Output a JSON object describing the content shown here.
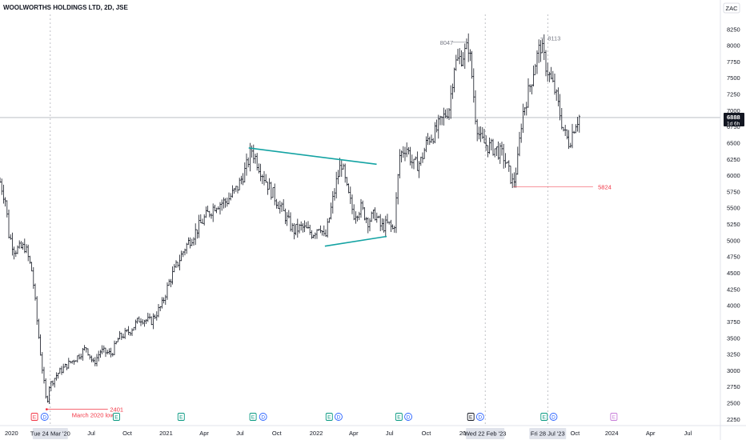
{
  "chart_data": {
    "type": "ohlc",
    "title": "WOOLWORTHS HOLDINGS LTD, 2D, JSE",
    "currency": "ZAC",
    "ylim": [
      2150,
      8450
    ],
    "y_ticks": [
      2250,
      2500,
      2750,
      3000,
      3250,
      3500,
      3750,
      4000,
      4250,
      4500,
      4750,
      5000,
      5250,
      5500,
      5750,
      6000,
      6250,
      6500,
      6750,
      7000,
      7250,
      7500,
      7750,
      8000,
      8250
    ],
    "x_labels": [
      "2020",
      "Jul",
      "Oct",
      "2021",
      "Apr",
      "Jul",
      "Oct",
      "2022",
      "Apr",
      "Jul",
      "Oct",
      "202",
      "Oct",
      "2024",
      "Apr",
      "Jul"
    ],
    "crosshair_dates": [
      "Tue 24 Mar '20",
      "Wed 22 Feb '23",
      "Fri 28 Jul '23"
    ],
    "last_price": {
      "value": 6888,
      "label": "6888",
      "countdown": "1d 6h"
    },
    "annotations": {
      "low_2020": {
        "value": 2401,
        "label": "2401",
        "note": "March 2020 low"
      },
      "high_feb23": {
        "value": 8047,
        "label": "8047"
      },
      "high_jul23": {
        "value": 8113,
        "label": "8113"
      },
      "low_support": {
        "value": 5824,
        "label": "5824"
      }
    },
    "trendlines": [
      {
        "from": [
          0.346,
          6420
        ],
        "to": [
          0.524,
          6170
        ]
      },
      {
        "from": [
          0.452,
          4910
        ],
        "to": [
          0.538,
          5060
        ]
      }
    ],
    "anchors": [
      [
        0.0,
        5900
      ],
      [
        0.008,
        5600
      ],
      [
        0.012,
        5100
      ],
      [
        0.02,
        4850
      ],
      [
        0.035,
        4900
      ],
      [
        0.045,
        4500
      ],
      [
        0.052,
        3700
      ],
      [
        0.058,
        3100
      ],
      [
        0.065,
        2450
      ],
      [
        0.068,
        2750
      ],
      [
        0.08,
        2950
      ],
      [
        0.095,
        3100
      ],
      [
        0.107,
        3200
      ],
      [
        0.12,
        3350
      ],
      [
        0.13,
        3100
      ],
      [
        0.14,
        3300
      ],
      [
        0.155,
        3250
      ],
      [
        0.165,
        3500
      ],
      [
        0.18,
        3600
      ],
      [
        0.195,
        3800
      ],
      [
        0.21,
        3750
      ],
      [
        0.225,
        4000
      ],
      [
        0.235,
        4350
      ],
      [
        0.245,
        4600
      ],
      [
        0.258,
        4900
      ],
      [
        0.27,
        5100
      ],
      [
        0.285,
        5350
      ],
      [
        0.3,
        5550
      ],
      [
        0.315,
        5600
      ],
      [
        0.33,
        5800
      ],
      [
        0.342,
        6100
      ],
      [
        0.35,
        6400
      ],
      [
        0.36,
        6150
      ],
      [
        0.375,
        5800
      ],
      [
        0.388,
        5550
      ],
      [
        0.398,
        5350
      ],
      [
        0.408,
        5150
      ],
      [
        0.42,
        5200
      ],
      [
        0.435,
        5100
      ],
      [
        0.445,
        5250
      ],
      [
        0.452,
        5000
      ],
      [
        0.46,
        5450
      ],
      [
        0.468,
        5900
      ],
      [
        0.475,
        6200
      ],
      [
        0.482,
        5800
      ],
      [
        0.492,
        5400
      ],
      [
        0.502,
        5500
      ],
      [
        0.512,
        5300
      ],
      [
        0.522,
        5400
      ],
      [
        0.53,
        5200
      ],
      [
        0.54,
        5250
      ],
      [
        0.548,
        5150
      ],
      [
        0.556,
        6300
      ],
      [
        0.565,
        6450
      ],
      [
        0.575,
        6150
      ],
      [
        0.585,
        6200
      ],
      [
        0.595,
        6550
      ],
      [
        0.605,
        6650
      ],
      [
        0.615,
        6850
      ],
      [
        0.625,
        7050
      ],
      [
        0.632,
        7700
      ],
      [
        0.64,
        7800
      ],
      [
        0.648,
        7900
      ],
      [
        0.652,
        8000
      ],
      [
        0.656,
        7600
      ],
      [
        0.662,
        6850
      ],
      [
        0.668,
        6550
      ],
      [
        0.678,
        6450
      ],
      [
        0.69,
        6400
      ],
      [
        0.7,
        6300
      ],
      [
        0.708,
        6050
      ],
      [
        0.714,
        5850
      ],
      [
        0.72,
        6200
      ],
      [
        0.726,
        6900
      ],
      [
        0.732,
        7150
      ],
      [
        0.738,
        7400
      ],
      [
        0.745,
        7750
      ],
      [
        0.752,
        8000
      ],
      [
        0.758,
        7750
      ],
      [
        0.765,
        7500
      ],
      [
        0.772,
        7300
      ],
      [
        0.778,
        7000
      ],
      [
        0.785,
        6650
      ],
      [
        0.792,
        6500
      ],
      [
        0.8,
        6800
      ],
      [
        0.806,
        6900
      ]
    ],
    "events": [
      {
        "x": 0.048,
        "type": "E",
        "color": "#f23645"
      },
      {
        "x": 0.062,
        "type": "D",
        "color": "#2962ff"
      },
      {
        "x": 0.162,
        "type": "E",
        "color": "#089981"
      },
      {
        "x": 0.252,
        "type": "E",
        "color": "#089981"
      },
      {
        "x": 0.352,
        "type": "E",
        "color": "#089981"
      },
      {
        "x": 0.366,
        "type": "D",
        "color": "#2962ff"
      },
      {
        "x": 0.458,
        "type": "E",
        "color": "#089981"
      },
      {
        "x": 0.471,
        "type": "D",
        "color": "#2962ff"
      },
      {
        "x": 0.555,
        "type": "E",
        "color": "#089981"
      },
      {
        "x": 0.568,
        "type": "D",
        "color": "#2962ff"
      },
      {
        "x": 0.655,
        "type": "E",
        "color": "#131722"
      },
      {
        "x": 0.668,
        "type": "D",
        "color": "#2962ff"
      },
      {
        "x": 0.757,
        "type": "E",
        "color": "#089981"
      },
      {
        "x": 0.77,
        "type": "D",
        "color": "#2962ff"
      },
      {
        "x": 0.854,
        "type": "E",
        "color": "#c77dd8"
      }
    ],
    "colors": {
      "bars": "#131722",
      "trendline": "#14a3a3",
      "support": "#f23645",
      "crosshair": "#9598a1",
      "price_line": "#b2b5be",
      "label_bg": "#e0e3eb"
    },
    "grid": false
  }
}
